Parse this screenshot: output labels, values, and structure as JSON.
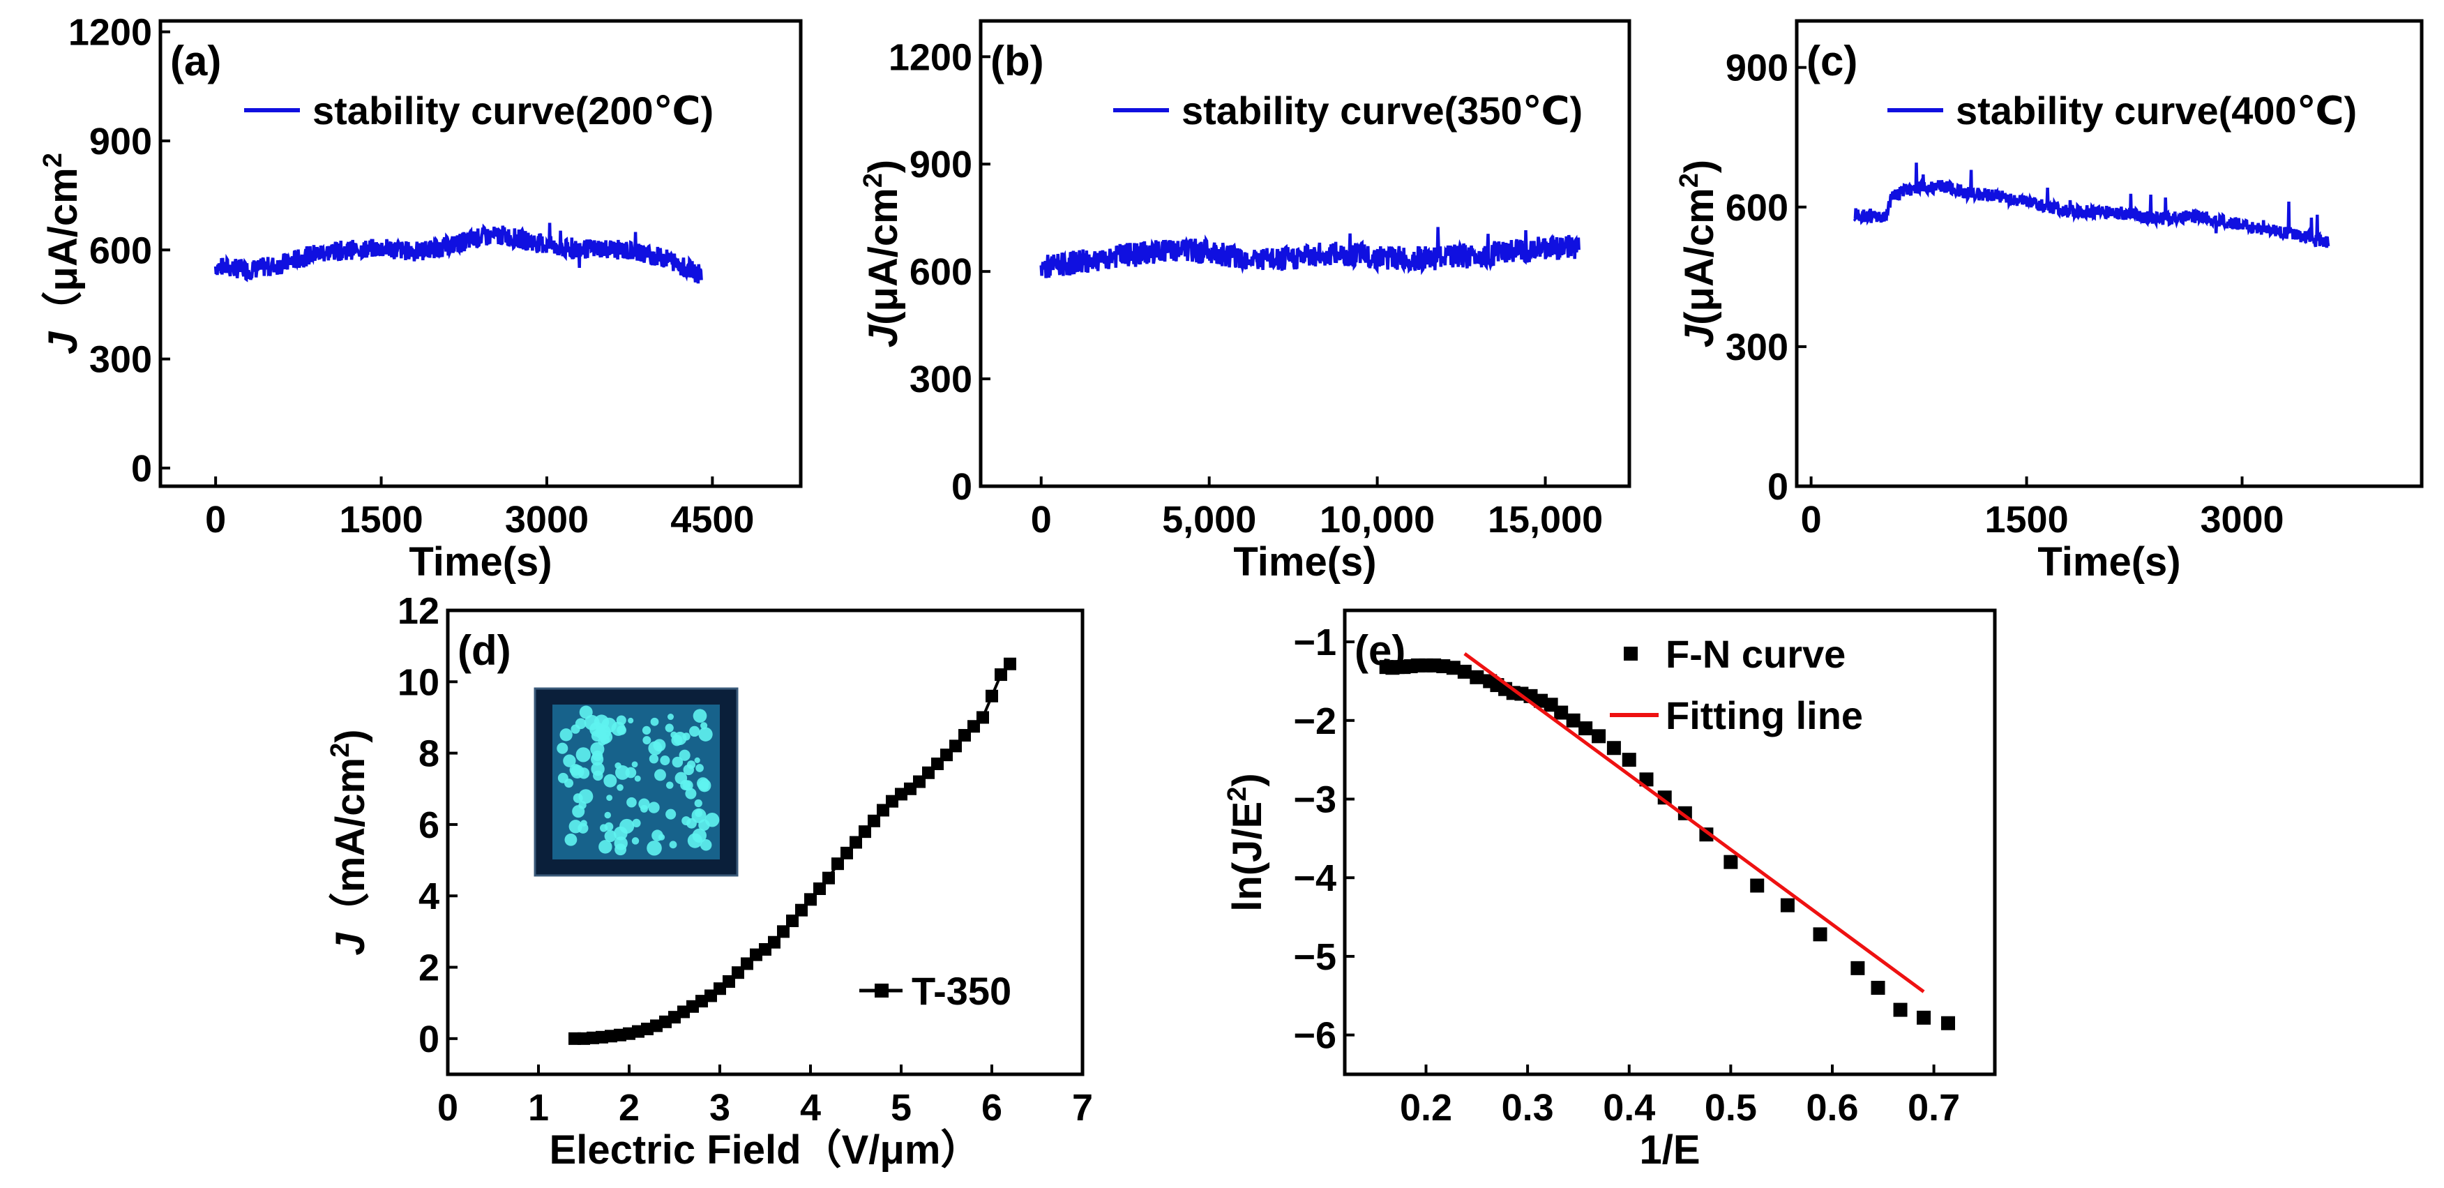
{
  "chart_data": [
    {
      "panel": "(a)",
      "type": "line",
      "xlabel": "Time(s)",
      "ylabel_main": "J",
      "ylabel_paren": "（",
      "ylabel_unit": "μA/cm",
      "ylabel_sup": "2",
      "xlim": [
        -500,
        5300
      ],
      "ylim": [
        -50,
        1230
      ],
      "xticks": [
        0,
        1500,
        3000,
        4500
      ],
      "xtick_labels": [
        "0",
        "1500",
        "3000",
        "4500"
      ],
      "yticks": [
        0,
        300,
        600,
        900,
        1200
      ],
      "ytick_labels": [
        "0",
        "300",
        "600",
        "900",
        "1200"
      ],
      "legend": "stability curve(200℃)",
      "color": "#1010e0",
      "x": [
        0,
        300,
        600,
        900,
        1200,
        1500,
        1800,
        2100,
        2400,
        2600,
        2900,
        3200,
        3500,
        3800,
        4100,
        4400
      ],
      "series_values": [
        555,
        545,
        560,
        590,
        600,
        605,
        595,
        610,
        635,
        640,
        620,
        600,
        605,
        595,
        575,
        530
      ]
    },
    {
      "panel": "(b)",
      "type": "line",
      "xlabel": "Time(s)",
      "ylabel_main": "J",
      "ylabel_paren": "",
      "ylabel_unit": "(μA/cm",
      "ylabel_sup": "2",
      "ylabel_close": ")",
      "xlim": [
        -1800,
        17500
      ],
      "ylim": [
        0,
        1300
      ],
      "xticks": [
        0,
        5000,
        10000,
        15000
      ],
      "xtick_labels": [
        "0",
        "5,000",
        "10,000",
        "15,000"
      ],
      "yticks": [
        0,
        300,
        600,
        900,
        1200
      ],
      "ytick_labels": [
        "0",
        "300",
        "600",
        "900",
        "1200"
      ],
      "legend": "stability curve(350℃)",
      "color": "#1010e0",
      "x": [
        0,
        1000,
        2000,
        3000,
        4000,
        5000,
        6000,
        7000,
        8000,
        9000,
        10000,
        11000,
        12000,
        13000,
        14000,
        15000,
        16000
      ],
      "series_values": [
        610,
        625,
        640,
        650,
        660,
        655,
        640,
        630,
        645,
        650,
        640,
        635,
        640,
        645,
        655,
        665,
        670
      ]
    },
    {
      "panel": "(c)",
      "type": "line",
      "xlabel": "Time(s)",
      "ylabel_main": "J",
      "ylabel_paren": "",
      "ylabel_unit": "(μA/cm",
      "ylabel_sup": "2",
      "ylabel_close": ")",
      "xlim": [
        -100,
        4250
      ],
      "ylim": [
        0,
        1000
      ],
      "xticks": [
        0,
        1500,
        3000
      ],
      "xtick_labels": [
        "0",
        "1500",
        "3000"
      ],
      "yticks": [
        0,
        300,
        600,
        900
      ],
      "ytick_labels": [
        "0",
        "300",
        "600",
        "900"
      ],
      "legend": "stability curve(400℃)",
      "color": "#1010e0",
      "x": [
        300,
        400,
        520,
        560,
        700,
        900,
        1100,
        1300,
        1500,
        1800,
        2100,
        2400,
        2700,
        3000,
        3300,
        3600
      ],
      "series_values": [
        585,
        580,
        575,
        625,
        640,
        645,
        630,
        625,
        610,
        590,
        590,
        575,
        580,
        560,
        545,
        525
      ]
    },
    {
      "panel": "(d)",
      "type": "line",
      "xlabel": "Electric Field（V/μm）",
      "ylabel_main": "J",
      "ylabel_paren": "（",
      "ylabel_unit": "mA/cm",
      "ylabel_sup": "2",
      "ylabel_close": ")",
      "xlim": [
        0,
        7
      ],
      "ylim": [
        -1,
        12
      ],
      "xticks": [
        0,
        1,
        2,
        3,
        4,
        5,
        6,
        7
      ],
      "xtick_labels": [
        "0",
        "1",
        "2",
        "3",
        "4",
        "5",
        "6",
        "7"
      ],
      "yticks": [
        0,
        2,
        4,
        6,
        8,
        10,
        12
      ],
      "ytick_labels": [
        "0",
        "2",
        "4",
        "6",
        "8",
        "10",
        "12"
      ],
      "legend": "T-350",
      "color": "#000000",
      "x": [
        1.4,
        1.5,
        1.6,
        1.7,
        1.8,
        1.9,
        2.0,
        2.1,
        2.2,
        2.3,
        2.4,
        2.5,
        2.6,
        2.7,
        2.8,
        2.9,
        3.0,
        3.1,
        3.2,
        3.3,
        3.4,
        3.5,
        3.6,
        3.7,
        3.8,
        3.9,
        4.0,
        4.1,
        4.2,
        4.3,
        4.4,
        4.5,
        4.6,
        4.7,
        4.8,
        4.9,
        5.0,
        5.1,
        5.2,
        5.3,
        5.4,
        5.5,
        5.6,
        5.7,
        5.8,
        5.9,
        6.0,
        6.1,
        6.2
      ],
      "series_values": [
        0.0,
        0.0,
        0.02,
        0.04,
        0.07,
        0.1,
        0.14,
        0.2,
        0.27,
        0.36,
        0.47,
        0.6,
        0.75,
        0.9,
        1.05,
        1.2,
        1.4,
        1.6,
        1.85,
        2.1,
        2.35,
        2.5,
        2.7,
        3.0,
        3.3,
        3.6,
        3.9,
        4.2,
        4.5,
        4.9,
        5.2,
        5.5,
        5.8,
        6.1,
        6.4,
        6.65,
        6.85,
        7.0,
        7.2,
        7.45,
        7.7,
        7.95,
        8.2,
        8.5,
        8.75,
        9.0,
        9.6,
        10.2,
        10.5
      ],
      "inset": "blue fluorescent emission image"
    },
    {
      "panel": "(e)",
      "type": "scatter",
      "xlabel": "1/E",
      "ylabel_main": "ln(J/E",
      "ylabel_paren": "",
      "ylabel_unit": "",
      "ylabel_sup": "2",
      "ylabel_close": ")",
      "xlim": [
        0.12,
        0.76
      ],
      "ylim": [
        -6.5,
        -0.6
      ],
      "xticks": [
        0.2,
        0.3,
        0.4,
        0.5,
        0.6,
        0.7
      ],
      "xtick_labels": [
        "0.2",
        "0.3",
        "0.4",
        "0.5",
        "0.6",
        "0.7"
      ],
      "yticks": [
        -6,
        -5,
        -4,
        -3,
        -2,
        -1
      ],
      "ytick_labels": [
        "−6",
        "−5",
        "−4",
        "−3",
        "−2",
        "−1"
      ],
      "legend": "F-N curve",
      "legend2": "Fitting line",
      "color": "#000000",
      "fit_color": "#ee1111",
      "x": [
        0.161,
        0.167,
        0.172,
        0.178,
        0.185,
        0.192,
        0.2,
        0.208,
        0.217,
        0.227,
        0.238,
        0.25,
        0.263,
        0.27,
        0.278,
        0.286,
        0.294,
        0.303,
        0.313,
        0.323,
        0.333,
        0.345,
        0.357,
        0.37,
        0.385,
        0.4,
        0.417,
        0.435,
        0.455,
        0.476,
        0.5,
        0.526,
        0.556,
        0.588,
        0.625,
        0.645,
        0.667,
        0.69,
        0.714
      ],
      "series_values": [
        -1.32,
        -1.33,
        -1.32,
        -1.32,
        -1.31,
        -1.3,
        -1.3,
        -1.3,
        -1.31,
        -1.33,
        -1.38,
        -1.45,
        -1.5,
        -1.55,
        -1.6,
        -1.65,
        -1.66,
        -1.69,
        -1.75,
        -1.8,
        -1.9,
        -2.0,
        -2.1,
        -2.2,
        -2.35,
        -2.5,
        -2.75,
        -2.98,
        -3.18,
        -3.45,
        -3.8,
        -4.1,
        -4.35,
        -4.72,
        -5.15,
        -5.4,
        -5.68,
        -5.78,
        -5.85
      ],
      "fit_x": [
        0.238,
        0.69
      ],
      "fit_y": [
        -1.15,
        -5.45
      ]
    }
  ]
}
